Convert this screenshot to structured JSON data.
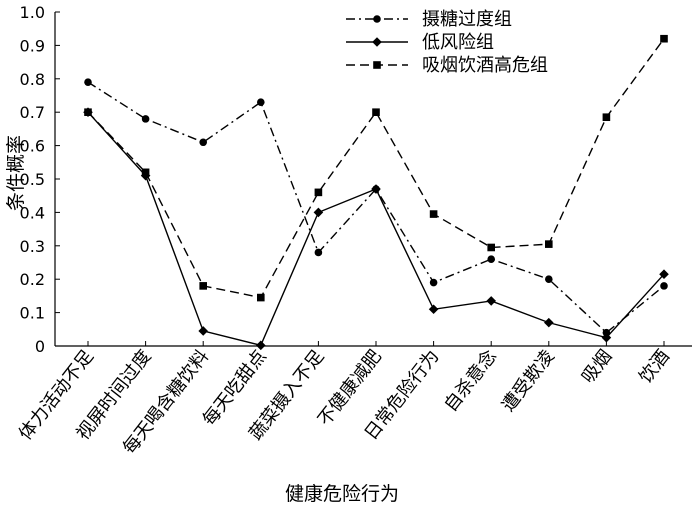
{
  "chart_data": {
    "type": "line",
    "xlabel": "健康危险行为",
    "ylabel": "条件概率",
    "ylim": [
      0,
      1.0
    ],
    "yticks": [
      "0",
      "0.1",
      "0.2",
      "0.3",
      "0.4",
      "0.5",
      "0.6",
      "0.7",
      "0.8",
      "0.9",
      "1.0"
    ],
    "categories": [
      "体力活动不足",
      "视屏时间过度",
      "每天喝含糖饮料",
      "每天吃甜点",
      "蔬菜摄入不足",
      "不健康减肥",
      "日常危险行为",
      "自杀意念",
      "遭受欺凌",
      "吸烟",
      "饮酒"
    ],
    "legend_position": "top-right",
    "series": [
      {
        "name": "摄糖过度组",
        "style": "dashdot",
        "marker": "circle",
        "values": [
          0.79,
          0.68,
          0.61,
          0.73,
          0.28,
          0.47,
          0.19,
          0.26,
          0.2,
          0.04,
          0.18
        ]
      },
      {
        "name": "低风险组",
        "style": "solid",
        "marker": "diamond",
        "values": [
          0.7,
          0.51,
          0.045,
          0.002,
          0.4,
          0.47,
          0.11,
          0.135,
          0.07,
          0.025,
          0.215
        ]
      },
      {
        "name": "吸烟饮酒高危组",
        "style": "dashed",
        "marker": "square",
        "values": [
          0.7,
          0.52,
          0.18,
          0.145,
          0.46,
          0.7,
          0.395,
          0.295,
          0.305,
          0.685,
          0.92
        ]
      }
    ]
  }
}
